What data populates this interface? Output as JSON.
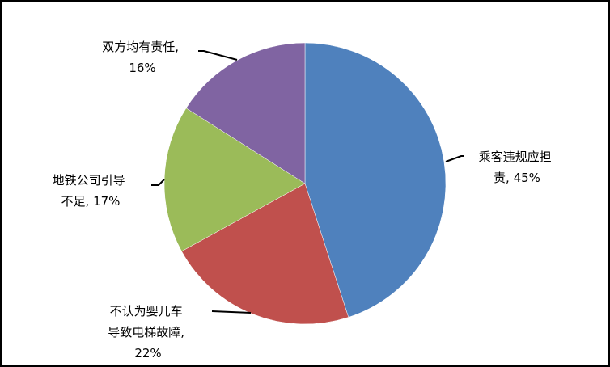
{
  "chart_data": {
    "type": "pie",
    "start_angle": "top, clockwise",
    "categories": [
      "乘客违规应担责",
      "不认为婴儿车导致电梯故障",
      "地铁公司引导不足",
      "双方均有责任"
    ],
    "values": [
      45,
      22,
      17,
      16
    ],
    "unit": "%",
    "colors": [
      "#4F81BD",
      "#C0504D",
      "#9BBB59",
      "#8064A2"
    ],
    "labels": [
      {
        "lines": [
          "乘客违规应担",
          "责, 45%"
        ]
      },
      {
        "lines": [
          "不认为婴儿车",
          "导致电梯故障,",
          "22%"
        ]
      },
      {
        "lines": [
          "地铁公司引导",
          "不足, 17%"
        ]
      },
      {
        "lines": [
          "双方均有责任,",
          "16%"
        ]
      }
    ],
    "legend": "none",
    "data_labels": "outside with leader lines"
  }
}
